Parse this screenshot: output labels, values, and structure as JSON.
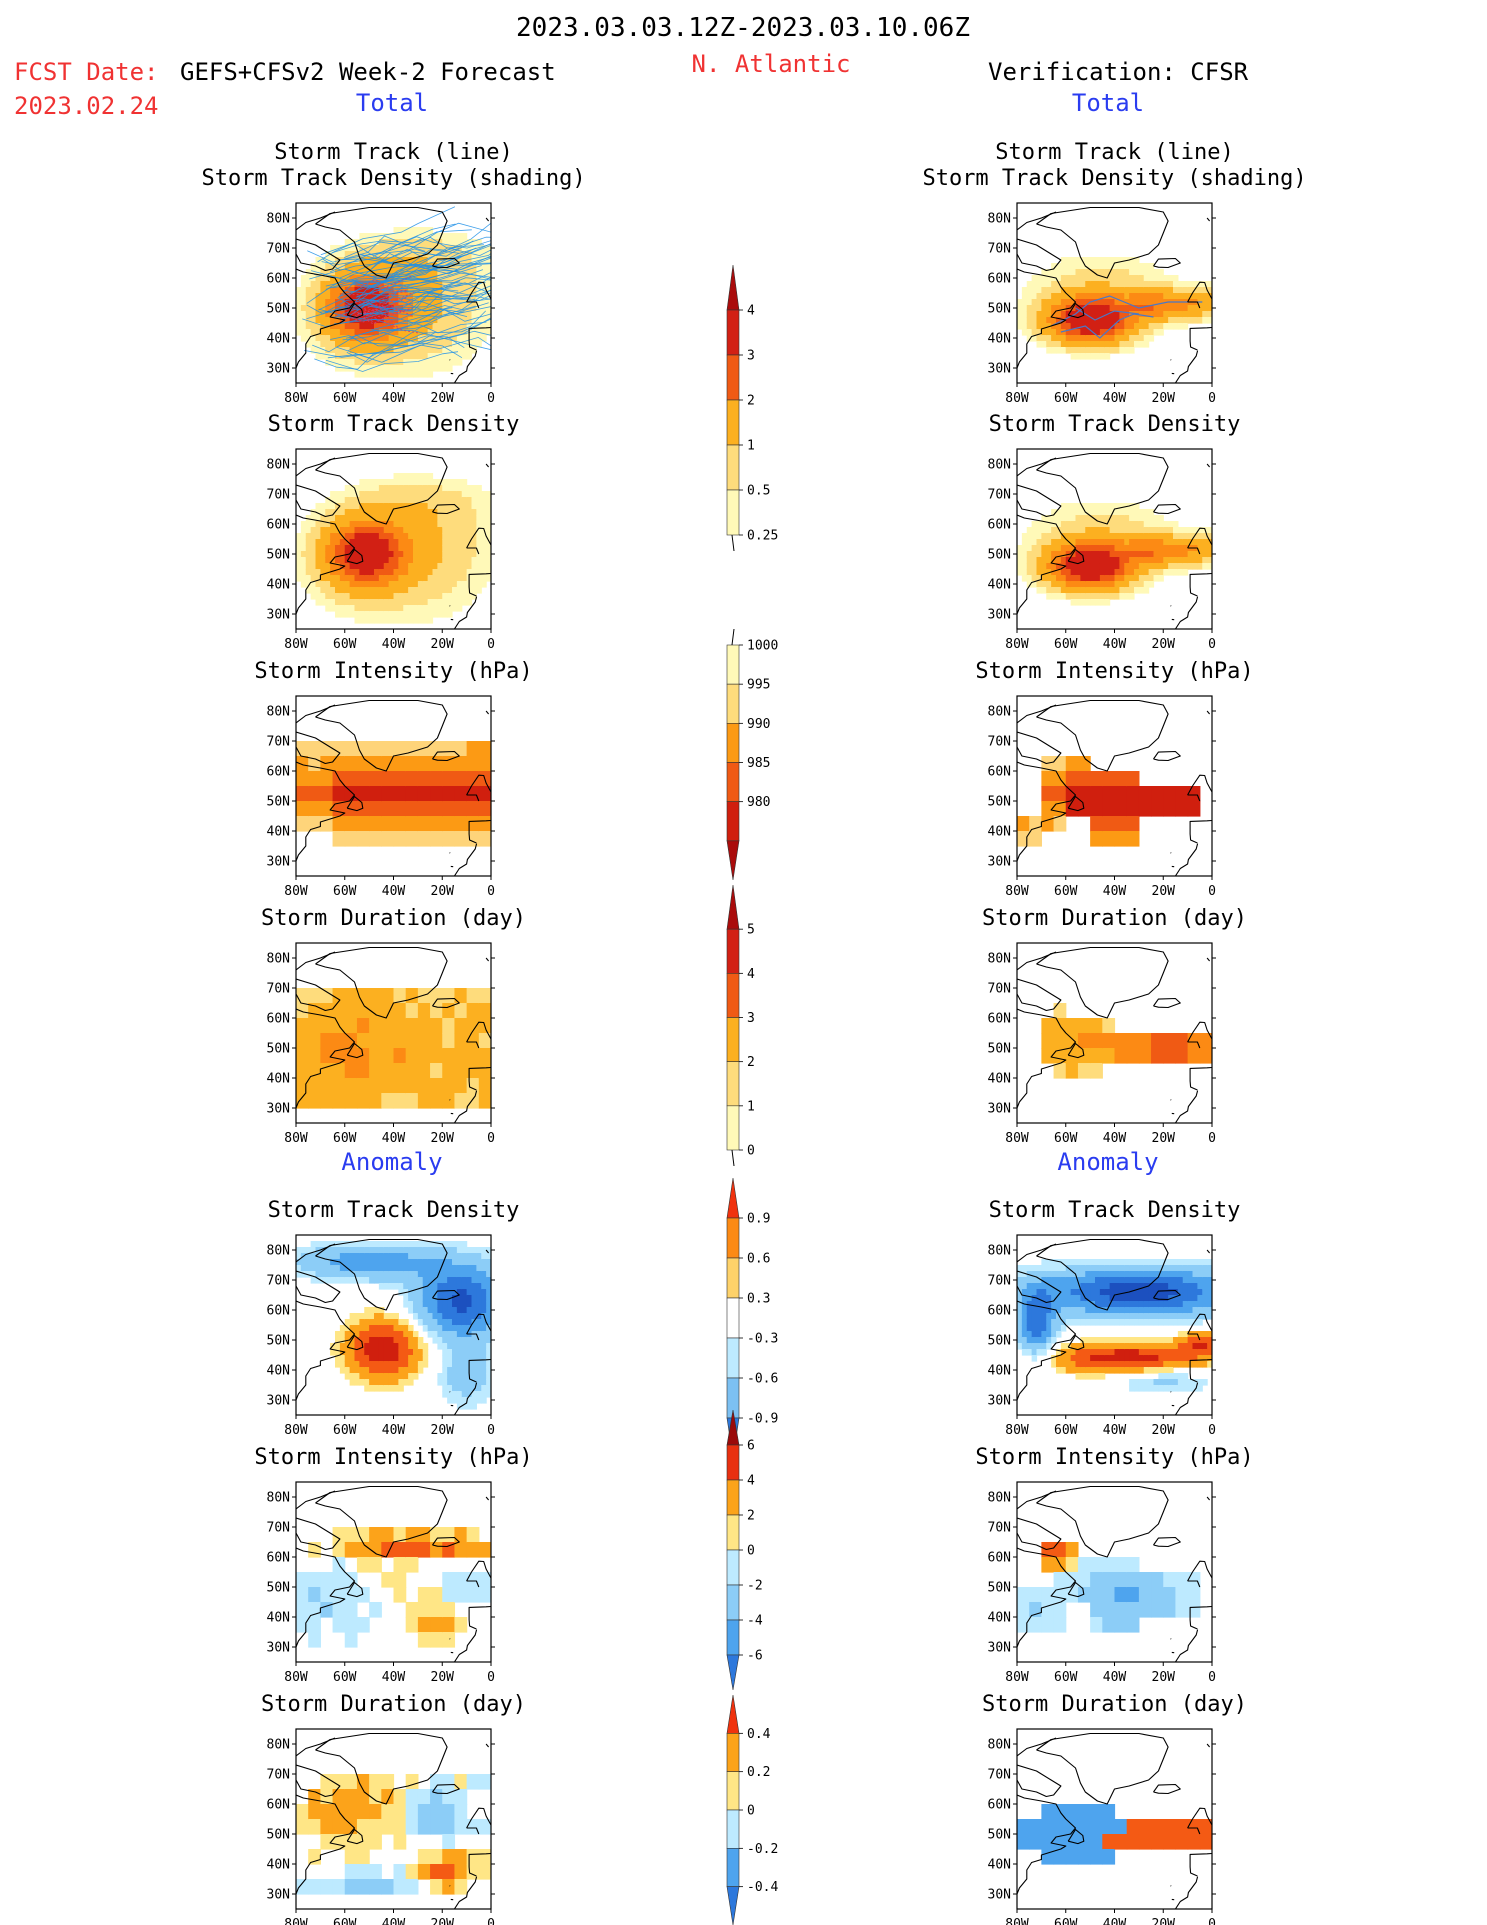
{
  "header": {
    "date_range": "2023.03.03.12Z-2023.03.10.06Z",
    "fcst_label": "FCST Date:",
    "fcst_model": "GEFS+CFSv2 Week-2 Forecast",
    "fcst_date": "2023.02.24",
    "region": "N. Atlantic",
    "verification": "Verification: CFSR"
  },
  "sections": {
    "total": "Total",
    "anomaly": "Anomaly"
  },
  "axes": {
    "lat_ticks": [
      "80N",
      "70N",
      "60N",
      "50N",
      "40N",
      "30N"
    ],
    "lon_ticks": [
      "80W",
      "60W",
      "40W",
      "20W",
      "0"
    ]
  },
  "colors": {
    "full_pos": [
      "#fff9b8",
      "#fedc7c",
      "#fcb020",
      "#fc8a14",
      "#f05a14",
      "#d22014",
      "#aa0c0c"
    ],
    "anom_pos": [
      "#ffffff",
      "#ffe686",
      "#fca31a",
      "#f45a14",
      "#d01f0e",
      "#9a0a0a"
    ],
    "anom_neg": [
      "#ffffff",
      "#bdeaff",
      "#8ccdf7",
      "#4ea4ee",
      "#2d78dc",
      "#1c50bf"
    ],
    "track_forecast": "#1e8fe6",
    "track_forecast_mean": "#d03c6c",
    "track_verification": "#4a78c8"
  },
  "chart_data": [
    {
      "type": "heatmap",
      "panel": "forecast",
      "title_lines": [
        "Storm Track (line)",
        "Storm Track Density (shading)"
      ],
      "lat_range": [
        25,
        85
      ],
      "lon_range": [
        -80,
        0
      ],
      "data_description": "density max ~4 near 50N 55W, broad yellow-orange shading over basin; many ensemble track lines"
    },
    {
      "type": "heatmap",
      "panel": "verification",
      "title_lines": [
        "Storm Track (line)",
        "Storm Track Density (shading)"
      ],
      "lat_range": [
        25,
        85
      ],
      "lon_range": [
        -80,
        0
      ],
      "data_description": "density max >4 near 47N 50W, band extending east along 50N"
    },
    {
      "type": "heatmap",
      "panel": "forecast",
      "title": "Storm Track Density",
      "lat_range": [
        25,
        85
      ],
      "lon_range": [
        -80,
        0
      ],
      "value_range": [
        0.25,
        4
      ]
    },
    {
      "type": "heatmap",
      "panel": "verification",
      "title": "Storm Track Density",
      "lat_range": [
        25,
        85
      ],
      "lon_range": [
        -80,
        0
      ],
      "value_range": [
        0.25,
        4
      ]
    },
    {
      "type": "heatmap",
      "panel": "forecast",
      "title": "Storm Intensity (hPa)",
      "lat_range": [
        25,
        85
      ],
      "lon_range": [
        -80,
        0
      ],
      "value_range": [
        980,
        1000
      ]
    },
    {
      "type": "heatmap",
      "panel": "verification",
      "title": "Storm Intensity (hPa)",
      "lat_range": [
        25,
        85
      ],
      "lon_range": [
        -80,
        0
      ],
      "value_range": [
        980,
        1000
      ]
    },
    {
      "type": "heatmap",
      "panel": "forecast",
      "title": "Storm Duration (day)",
      "lat_range": [
        25,
        85
      ],
      "lon_range": [
        -80,
        0
      ],
      "value_range": [
        0,
        5
      ]
    },
    {
      "type": "heatmap",
      "panel": "verification",
      "title": "Storm Duration (day)",
      "lat_range": [
        25,
        85
      ],
      "lon_range": [
        -80,
        0
      ],
      "value_range": [
        0,
        5
      ]
    },
    {
      "type": "heatmap",
      "panel": "forecast-anomaly",
      "title": "Storm Track Density",
      "lat_range": [
        25,
        85
      ],
      "lon_range": [
        -80,
        0
      ],
      "value_range": [
        -0.9,
        0.9
      ]
    },
    {
      "type": "heatmap",
      "panel": "verification-anomaly",
      "title": "Storm Track Density",
      "lat_range": [
        25,
        85
      ],
      "lon_range": [
        -80,
        0
      ],
      "value_range": [
        -0.9,
        0.9
      ]
    },
    {
      "type": "heatmap",
      "panel": "forecast-anomaly",
      "title": "Storm Intensity (hPa)",
      "lat_range": [
        25,
        85
      ],
      "lon_range": [
        -80,
        0
      ],
      "value_range": [
        -6,
        6
      ]
    },
    {
      "type": "heatmap",
      "panel": "verification-anomaly",
      "title": "Storm Intensity (hPa)",
      "lat_range": [
        25,
        85
      ],
      "lon_range": [
        -80,
        0
      ],
      "value_range": [
        -6,
        6
      ]
    },
    {
      "type": "heatmap",
      "panel": "forecast-anomaly",
      "title": "Storm Duration (day)",
      "lat_range": [
        25,
        85
      ],
      "lon_range": [
        -80,
        0
      ],
      "value_range": [
        -0.4,
        0.4
      ]
    },
    {
      "type": "heatmap",
      "panel": "verification-anomaly",
      "title": "Storm Duration (day)",
      "lat_range": [
        25,
        85
      ],
      "lon_range": [
        -80,
        0
      ],
      "value_range": [
        -0.4,
        0.4
      ]
    }
  ],
  "colorbars": [
    {
      "name": "density",
      "labels": [
        "4",
        "3",
        "2",
        "1",
        "0.5",
        "0.25"
      ]
    },
    {
      "name": "intensity",
      "labels": [
        "1000",
        "995",
        "990",
        "985",
        "980"
      ]
    },
    {
      "name": "duration",
      "labels": [
        "5",
        "4",
        "3",
        "2",
        "1",
        "0"
      ]
    },
    {
      "name": "density-anomaly",
      "labels": [
        "0.9",
        "0.6",
        "0.3",
        "-0.3",
        "-0.6",
        "-0.9"
      ]
    },
    {
      "name": "intensity-anomaly",
      "labels": [
        "6",
        "4",
        "2",
        "0",
        "-2",
        "-4",
        "-6"
      ]
    },
    {
      "name": "duration-anomaly",
      "labels": [
        "0.4",
        "0.2",
        "0",
        "-0.2",
        "-0.4"
      ]
    }
  ]
}
